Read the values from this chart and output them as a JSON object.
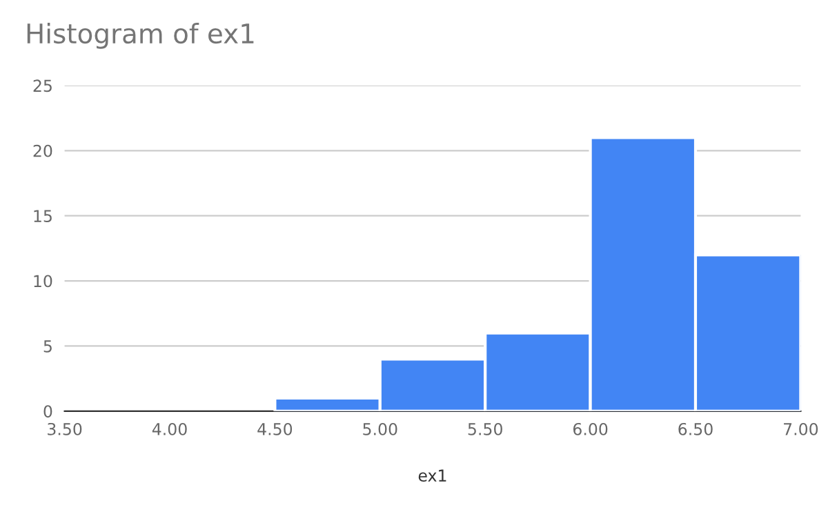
{
  "chart_data": {
    "type": "histogram",
    "title": "Histogram of ex1",
    "xlabel": "ex1",
    "bins": [
      3.5,
      4.0,
      4.5,
      5.0,
      5.5,
      6.0,
      6.5,
      7.0
    ],
    "values": [
      0,
      0,
      1,
      4,
      6,
      21,
      12
    ],
    "color": "#4285f4",
    "xlim": [
      3.5,
      7.0
    ],
    "xticks": [
      {
        "value": 3.5,
        "label": "3.50"
      },
      {
        "value": 4.0,
        "label": "4.00"
      },
      {
        "value": 4.5,
        "label": "4.50"
      },
      {
        "value": 5.0,
        "label": "5.00"
      },
      {
        "value": 5.5,
        "label": "5.50"
      },
      {
        "value": 6.0,
        "label": "6.00"
      },
      {
        "value": 6.5,
        "label": "6.50"
      },
      {
        "value": 7.0,
        "label": "7.00"
      }
    ],
    "ylim": [
      0,
      25
    ],
    "yticks": [
      0,
      5,
      10,
      15,
      20,
      25
    ],
    "grid": "y",
    "legend": false
  }
}
